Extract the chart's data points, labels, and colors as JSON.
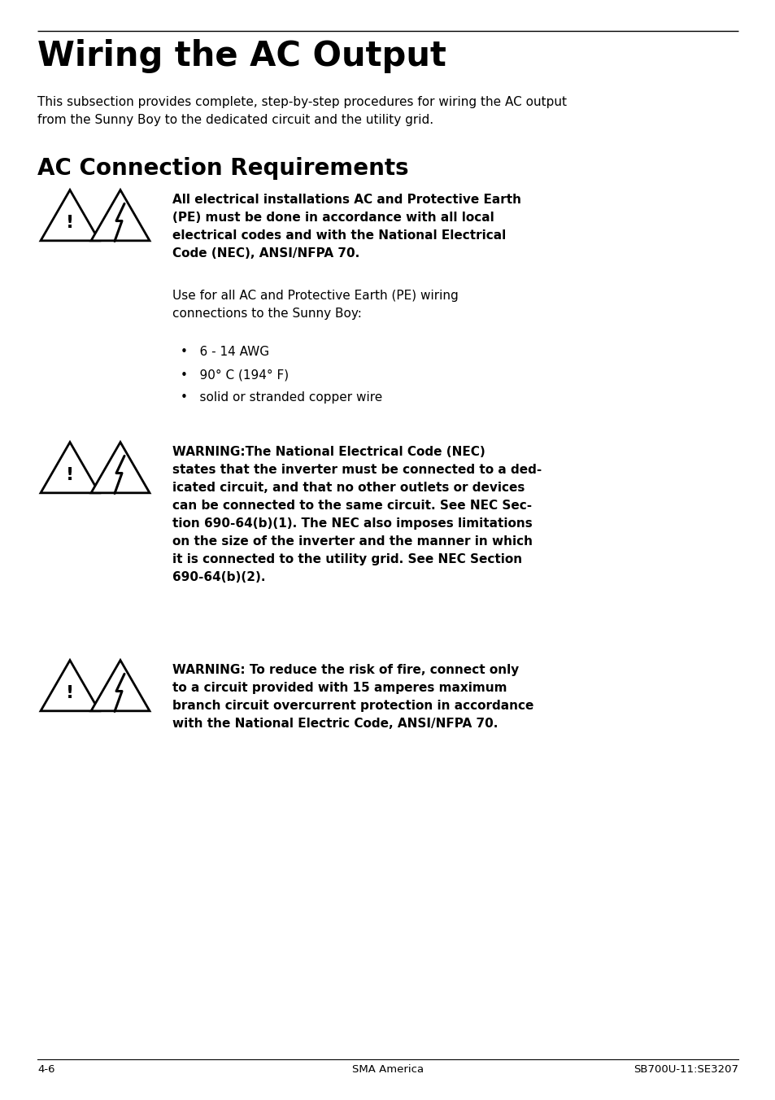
{
  "bg_color": "#ffffff",
  "page_title": "Wiring the AC Output",
  "title_intro": "This subsection provides complete, step-by-step procedures for wiring the AC output\nfrom the Sunny Boy to the dedicated circuit and the utility grid.",
  "section_title": "AC Connection Requirements",
  "footer_left": "4-6",
  "footer_center": "SMA America",
  "footer_right": "SB700U-11:SE3207",
  "block1_bold": "All electrical installations AC and Protective Earth\n(PE) must be done in accordance with all local\nelectrical codes and with the National Electrical\nCode (NEC), ANSI/NFPA 70.",
  "block1_normal": "Use for all AC and Protective Earth (PE) wiring\nconnections to the Sunny Boy:",
  "block1_bullets": [
    "6 - 14 AWG",
    "90° C (194° F)",
    "solid or stranded copper wire"
  ],
  "block2_bold": "WARNING:The National Electrical Code (NEC)\nstates that the inverter must be connected to a ded-\nicated circuit, and that no other outlets or devices\ncan be connected to the same circuit. See NEC Sec-\ntion 690-64(b)(1). The NEC also imposes limitations\non the size of the inverter and the manner in which\nit is connected to the utility grid. See NEC Section\n690-64(b)(2).",
  "block3_bold": "WARNING: To reduce the risk of fire, connect only\nto a circuit provided with 15 amperes maximum\nbranch circuit overcurrent protection in accordance\nwith the National Electric Code, ANSI/NFPA 70."
}
